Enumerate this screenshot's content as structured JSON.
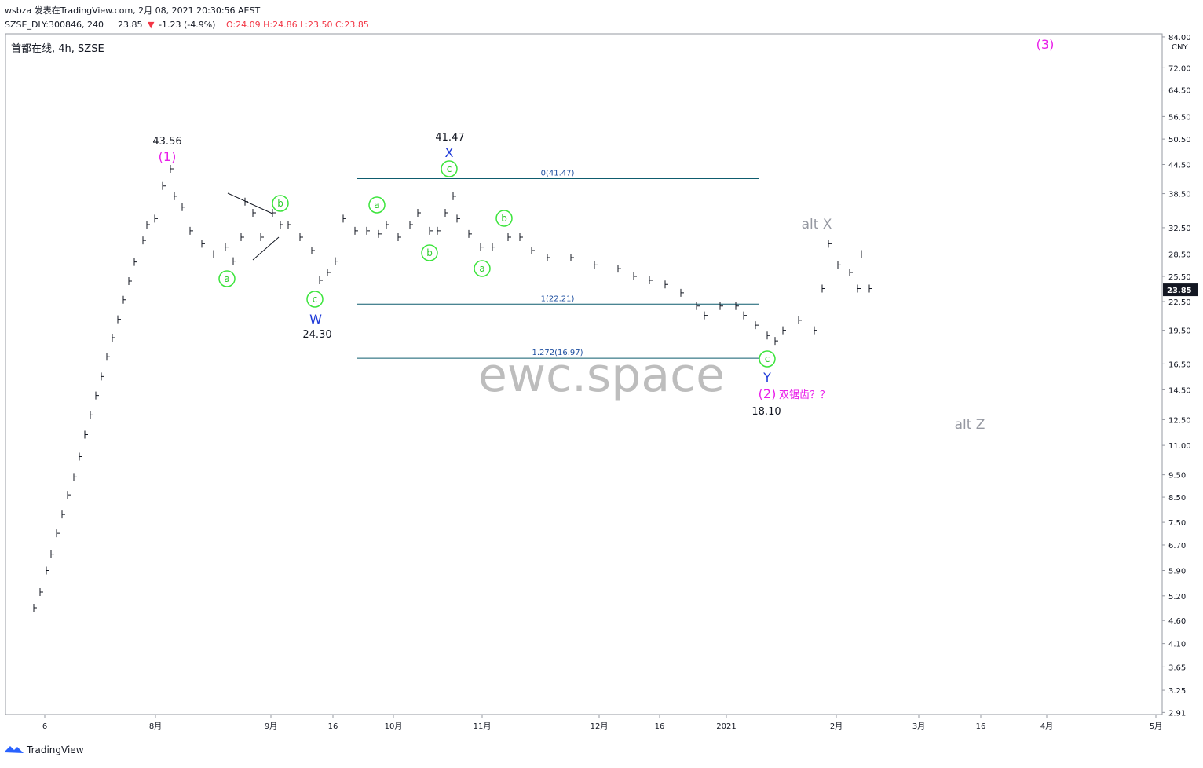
{
  "header": {
    "line1": "wsbza 发表在TradingView.com, 2月 08, 2021 20:30:56 AEST",
    "symbol": "SZSE_DLY:300846, 240",
    "last": "23.85",
    "change": "-1.23 (-4.9%)",
    "ohlc": "O:24.09 H:24.86 L:23.50 C:23.85"
  },
  "chart_data": {
    "type": "price-bars",
    "title": "首都在线, 4h, SZSE",
    "currency": "CNY",
    "log_scale": true,
    "color": "#131722",
    "x": [
      36,
      44,
      52,
      58,
      65,
      72,
      79,
      87,
      94,
      101,
      108,
      115,
      122,
      129,
      136,
      143,
      150,
      157,
      164,
      175,
      180,
      190,
      200,
      210,
      215,
      225,
      235,
      250,
      265,
      280,
      290,
      300,
      305,
      315,
      325,
      340,
      350,
      360,
      375,
      390,
      400,
      410,
      420,
      430,
      445,
      460,
      475,
      485,
      500,
      515,
      525,
      540,
      550,
      560,
      570,
      575,
      590,
      605,
      620,
      640,
      655,
      670,
      690,
      720,
      750,
      780,
      800,
      820,
      840,
      860,
      880,
      890,
      910,
      930,
      940,
      955,
      970,
      980,
      990,
      1010,
      1030,
      1040,
      1048,
      1060,
      1075,
      1085,
      1090,
      1100
    ],
    "values": [
      4.9,
      5.3,
      5.9,
      6.4,
      7.1,
      7.8,
      8.6,
      9.4,
      10.4,
      11.6,
      12.8,
      14.1,
      15.5,
      17.1,
      18.8,
      20.6,
      22.7,
      24.9,
      27.4,
      30.5,
      33,
      34,
      40,
      43.56,
      38,
      36,
      32,
      30,
      28.5,
      29.5,
      27.5,
      31,
      37,
      35,
      31,
      35,
      33,
      33,
      31,
      29,
      25,
      26,
      27.5,
      34,
      32,
      32,
      31.5,
      33,
      31,
      33,
      35,
      32,
      32,
      35,
      38,
      34,
      31.5,
      29.5,
      29.5,
      31,
      31,
      29,
      28,
      28,
      27,
      26.5,
      25.5,
      25,
      24.5,
      23.5,
      22,
      21,
      22,
      22,
      21,
      20,
      19,
      18.5,
      19.5,
      20.5,
      19.5,
      24,
      30,
      27,
      26,
      24,
      28.5,
      24
    ],
    "xlim": [
      0,
      1473
    ],
    "ylim": [
      2.88,
      85.3
    ],
    "xticks": [
      {
        "value": 50,
        "label": "6"
      },
      {
        "value": 191,
        "label": "8月"
      },
      {
        "value": 338,
        "label": "9月"
      },
      {
        "value": 417,
        "label": "16"
      },
      {
        "value": 494,
        "label": "10月"
      },
      {
        "value": 607,
        "label": "11月"
      },
      {
        "value": 756,
        "label": "12月"
      },
      {
        "value": 833,
        "label": "16"
      },
      {
        "value": 918,
        "label": "2021"
      },
      {
        "value": 1058,
        "label": "2月"
      },
      {
        "value": 1163,
        "label": "3月"
      },
      {
        "value": 1242,
        "label": "16"
      },
      {
        "value": 1326,
        "label": "4月"
      },
      {
        "value": 1465,
        "label": "5月"
      }
    ],
    "yticks": [
      {
        "value": 84,
        "label": "84.00"
      },
      {
        "value": 72,
        "label": "72.00"
      },
      {
        "value": 64.5,
        "label": "64.50"
      },
      {
        "value": 56.5,
        "label": "56.50"
      },
      {
        "value": 50.5,
        "label": "50.50"
      },
      {
        "value": 44.5,
        "label": "44.50"
      },
      {
        "value": 38.5,
        "label": "38.50"
      },
      {
        "value": 32.5,
        "label": "32.50"
      },
      {
        "value": 28.5,
        "label": "28.50"
      },
      {
        "value": 25.5,
        "label": "25.50"
      },
      {
        "value": 22.5,
        "label": "22.50"
      },
      {
        "value": 19.5,
        "label": "19.50"
      },
      {
        "value": 16.5,
        "label": "16.50"
      },
      {
        "value": 14.5,
        "label": "14.50"
      },
      {
        "value": 12.5,
        "label": "12.50"
      },
      {
        "value": 11,
        "label": "11.00"
      },
      {
        "value": 9.5,
        "label": "9.50"
      },
      {
        "value": 8.5,
        "label": "8.50"
      },
      {
        "value": 7.5,
        "label": "7.50"
      },
      {
        "value": 6.7,
        "label": "6.70"
      },
      {
        "value": 5.9,
        "label": "5.90"
      },
      {
        "value": 5.2,
        "label": "5.20"
      },
      {
        "value": 4.6,
        "label": "4.60"
      },
      {
        "value": 4.1,
        "label": "4.10"
      },
      {
        "value": 3.65,
        "label": "3.65"
      },
      {
        "value": 3.25,
        "label": "3.25"
      },
      {
        "value": 2.91,
        "label": "2.91"
      }
    ],
    "last_price": 23.85,
    "fib_levels": [
      {
        "value": 41.47,
        "label": "0(41.47)"
      },
      {
        "value": 22.21,
        "label": "1(22.21)"
      },
      {
        "value": 16.97,
        "label": "1.272(16.97)"
      }
    ],
    "annotations": {
      "high1": "43.56",
      "w1": "(1)",
      "high_x": "41.47",
      "x": "X",
      "w": "W",
      "low_w": "24.30",
      "y": "Y",
      "w2": "(2)",
      "note": "双锯齿？？",
      "low_y": "18.10",
      "alt_x": "alt X",
      "alt_z": "alt Z",
      "w3": "(3)"
    },
    "wave_labels": [
      "a",
      "b",
      "c",
      "a",
      "b",
      "c",
      "a",
      "b",
      "c"
    ],
    "watermark": "ewc.space"
  },
  "footer": "TradingView"
}
